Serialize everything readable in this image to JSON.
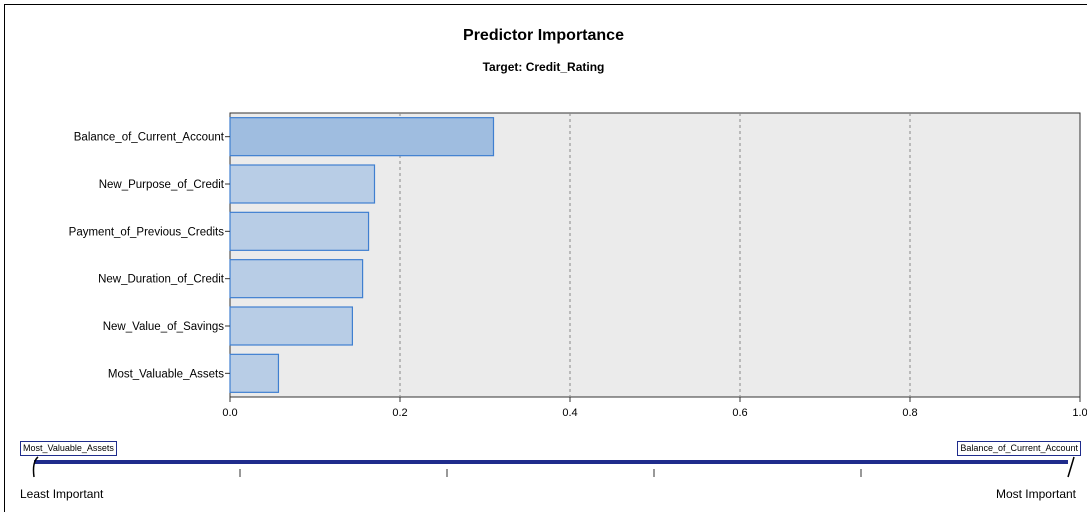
{
  "chart_data": {
    "type": "bar",
    "orientation": "horizontal",
    "title": "Predictor Importance",
    "subtitle": "Target: Credit_Rating",
    "categories": [
      "Balance_of_Current_Account",
      "New_Purpose_of_Credit",
      "Payment_of_Previous_Credits",
      "New_Duration_of_Credit",
      "New_Value_of_Savings",
      "Most_Valuable_Assets"
    ],
    "values": [
      0.31,
      0.17,
      0.163,
      0.156,
      0.144,
      0.057
    ],
    "xlim": [
      0,
      1.0
    ],
    "xticks": [
      "0.0",
      "0.2",
      "0.4",
      "0.6",
      "0.8",
      "1.0"
    ],
    "grid": "vertical dashed",
    "colors": {
      "first_bar": "#9fbde0",
      "bars": "#b8cde6",
      "bar_border": "#3f7fd0",
      "plot_bg": "#ebebeb",
      "scale_line": "#1f2c8c"
    }
  },
  "scale": {
    "left_tag": "Most_Valuable_Assets",
    "right_tag": "Balance_of_Current_Account",
    "left_label": "Least Important",
    "right_label": "Most Important"
  }
}
